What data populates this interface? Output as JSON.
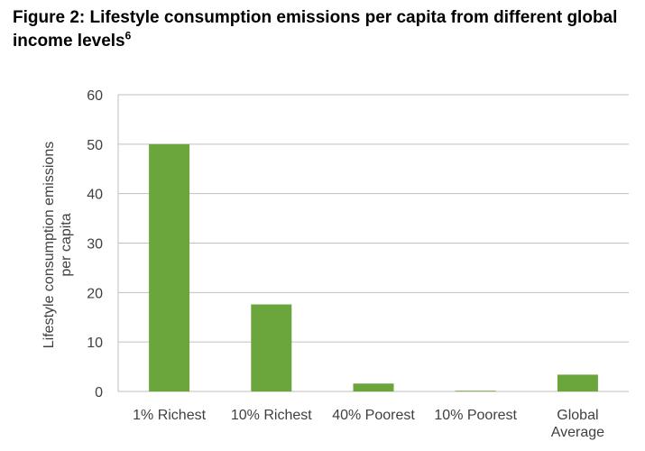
{
  "figure": {
    "title_main": "Figure 2: Lifestyle consumption emissions per capita from different global income levels",
    "title_footnote": "6"
  },
  "colors": {
    "bar": "#6aa63c",
    "grid": "#bfbfbf",
    "axis_text": "#404040"
  },
  "chart_data": {
    "type": "bar",
    "title": "",
    "xlabel": "",
    "ylabel": "Lifestyle consumption emissions per capita",
    "ylabel_lines": [
      "Lifestyle consumption emissions",
      "per capita"
    ],
    "categories": [
      "1% Richest",
      "10% Richest",
      "40% Poorest",
      "10% Poorest",
      "Global Average"
    ],
    "category_lines": [
      [
        "1% Richest"
      ],
      [
        "10% Richest"
      ],
      [
        "40% Poorest"
      ],
      [
        "10% Poorest"
      ],
      [
        "Global",
        "Average"
      ]
    ],
    "values": [
      50,
      17.6,
      1.6,
      0.1,
      3.4
    ],
    "ylim": [
      0,
      60
    ],
    "yticks": [
      "0",
      "10",
      "20",
      "30",
      "40",
      "50",
      "60"
    ],
    "grid": true,
    "legend": "none"
  }
}
